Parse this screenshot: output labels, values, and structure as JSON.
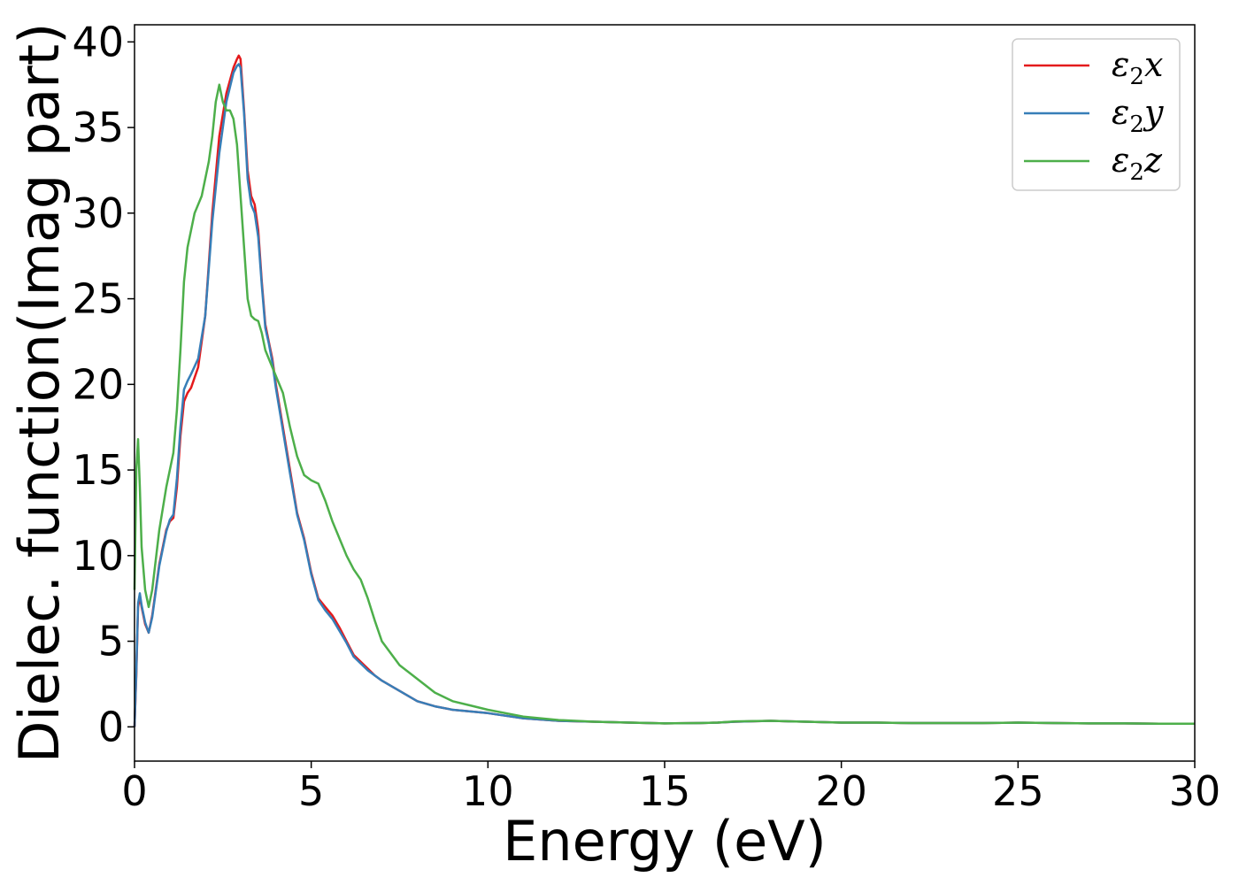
{
  "chart_data": {
    "type": "line",
    "title": "",
    "xlabel": "Energy (eV)",
    "ylabel": "Dielec. function(Imag part)",
    "xlim": [
      0,
      30
    ],
    "ylim": [
      -2,
      41
    ],
    "xticks": [
      0,
      5,
      10,
      15,
      20,
      25,
      30
    ],
    "yticks": [
      0,
      5,
      10,
      15,
      20,
      25,
      30,
      35,
      40
    ],
    "grid": false,
    "legend_position": "top-right",
    "series": [
      {
        "name": "ε2x",
        "legend_symbol": "ε",
        "legend_sub": "2",
        "legend_var": "x",
        "color": "#e41a1c",
        "x": [
          0,
          0.05,
          0.1,
          0.15,
          0.2,
          0.3,
          0.4,
          0.5,
          0.7,
          0.9,
          1.0,
          1.1,
          1.2,
          1.3,
          1.4,
          1.5,
          1.6,
          1.8,
          2.0,
          2.2,
          2.4,
          2.6,
          2.8,
          2.9,
          2.95,
          3.0,
          3.1,
          3.2,
          3.3,
          3.4,
          3.5,
          3.6,
          3.7,
          3.8,
          3.9,
          4.0,
          4.2,
          4.4,
          4.6,
          4.8,
          5.0,
          5.2,
          5.4,
          5.6,
          5.8,
          6.0,
          6.2,
          6.4,
          6.6,
          6.8,
          7.0,
          7.5,
          8.0,
          8.5,
          9.0,
          9.5,
          10,
          11,
          12,
          13,
          14,
          15,
          16,
          16.5,
          17,
          18,
          19,
          20,
          21,
          22,
          23,
          24,
          25,
          26,
          27,
          28,
          29,
          30
        ],
        "y": [
          0,
          3,
          7,
          7.6,
          7,
          6,
          5.5,
          6.5,
          9.5,
          11.5,
          12,
          12.2,
          14,
          17,
          19,
          19.5,
          19.8,
          21,
          24,
          30,
          34.5,
          37,
          38.5,
          39,
          39.2,
          39,
          36,
          32.5,
          31,
          30.5,
          29,
          26,
          23.5,
          22.5,
          21.5,
          20,
          17.5,
          15,
          12.5,
          11,
          9,
          7.5,
          7,
          6.5,
          5.8,
          5,
          4.2,
          3.8,
          3.4,
          3,
          2.7,
          2.1,
          1.5,
          1.2,
          1.0,
          0.9,
          0.8,
          0.5,
          0.35,
          0.3,
          0.25,
          0.2,
          0.22,
          0.25,
          0.3,
          0.35,
          0.3,
          0.25,
          0.25,
          0.22,
          0.22,
          0.22,
          0.25,
          0.22,
          0.2,
          0.2,
          0.18,
          0.18
        ]
      },
      {
        "name": "ε2y",
        "legend_symbol": "ε",
        "legend_sub": "2",
        "legend_var": "y",
        "color": "#377eb8",
        "x": [
          0,
          0.05,
          0.1,
          0.15,
          0.2,
          0.3,
          0.4,
          0.5,
          0.7,
          0.9,
          1.0,
          1.1,
          1.2,
          1.3,
          1.4,
          1.5,
          1.6,
          1.8,
          2.0,
          2.2,
          2.4,
          2.6,
          2.8,
          2.9,
          2.95,
          3.0,
          3.1,
          3.2,
          3.3,
          3.4,
          3.5,
          3.6,
          3.7,
          3.8,
          3.9,
          4.0,
          4.2,
          4.4,
          4.6,
          4.8,
          5.0,
          5.2,
          5.4,
          5.6,
          5.8,
          6.0,
          6.2,
          6.4,
          6.6,
          6.8,
          7.0,
          7.5,
          8.0,
          8.5,
          9.0,
          9.5,
          10,
          11,
          12,
          13,
          14,
          15,
          16,
          16.5,
          17,
          18,
          19,
          20,
          21,
          22,
          23,
          24,
          25,
          26,
          27,
          28,
          29,
          30
        ],
        "y": [
          0,
          3.2,
          7.2,
          7.8,
          7.1,
          6.1,
          5.5,
          6.4,
          9.4,
          11.4,
          12.1,
          12.4,
          14.5,
          17.5,
          19.7,
          20.2,
          20.6,
          21.5,
          24,
          29.5,
          33.5,
          36.5,
          38.2,
          38.6,
          38.7,
          38.5,
          35.8,
          32,
          30.5,
          30,
          28.6,
          25.8,
          23.3,
          22.4,
          21.3,
          19.8,
          17.3,
          14.8,
          12.4,
          10.9,
          8.9,
          7.4,
          6.8,
          6.3,
          5.6,
          4.9,
          4.1,
          3.7,
          3.3,
          3,
          2.7,
          2.1,
          1.5,
          1.2,
          1.0,
          0.9,
          0.8,
          0.5,
          0.35,
          0.3,
          0.25,
          0.2,
          0.22,
          0.25,
          0.3,
          0.35,
          0.3,
          0.25,
          0.25,
          0.22,
          0.22,
          0.22,
          0.25,
          0.22,
          0.2,
          0.2,
          0.18,
          0.18
        ]
      },
      {
        "name": "ε2z",
        "legend_symbol": "ε",
        "legend_sub": "2",
        "legend_var": "z",
        "color": "#4daf4a",
        "x": [
          0,
          0.05,
          0.1,
          0.15,
          0.2,
          0.3,
          0.4,
          0.5,
          0.7,
          0.9,
          1.1,
          1.2,
          1.3,
          1.4,
          1.5,
          1.7,
          1.9,
          2.1,
          2.2,
          2.3,
          2.4,
          2.5,
          2.6,
          2.7,
          2.8,
          2.9,
          3.0,
          3.1,
          3.2,
          3.3,
          3.4,
          3.5,
          3.6,
          3.7,
          3.8,
          4.0,
          4.2,
          4.4,
          4.6,
          4.8,
          5.0,
          5.2,
          5.4,
          5.6,
          5.8,
          6.0,
          6.2,
          6.4,
          6.6,
          6.8,
          7.0,
          7.5,
          8.0,
          8.5,
          9.0,
          9.5,
          10,
          11,
          12,
          13,
          14,
          15,
          16,
          16.5,
          17,
          18,
          19,
          20,
          21,
          22,
          23,
          24,
          25,
          26,
          27,
          28,
          29,
          30
        ],
        "y": [
          8,
          15,
          16.8,
          14,
          10.5,
          8,
          7,
          8,
          11.5,
          14,
          16,
          18.5,
          22,
          26,
          28,
          30,
          31,
          33,
          34.5,
          36.5,
          37.5,
          36.5,
          36,
          36,
          35.5,
          34,
          31,
          28,
          25,
          24,
          23.8,
          23.7,
          23,
          22,
          21.5,
          20.5,
          19.5,
          17.5,
          15.8,
          14.7,
          14.4,
          14.2,
          13.2,
          12,
          11,
          10,
          9.2,
          8.6,
          7.5,
          6.2,
          5.0,
          3.6,
          2.8,
          2.0,
          1.5,
          1.25,
          1.0,
          0.6,
          0.4,
          0.3,
          0.25,
          0.2,
          0.22,
          0.25,
          0.32,
          0.35,
          0.3,
          0.25,
          0.25,
          0.22,
          0.22,
          0.22,
          0.25,
          0.22,
          0.2,
          0.2,
          0.18,
          0.18
        ]
      }
    ]
  }
}
